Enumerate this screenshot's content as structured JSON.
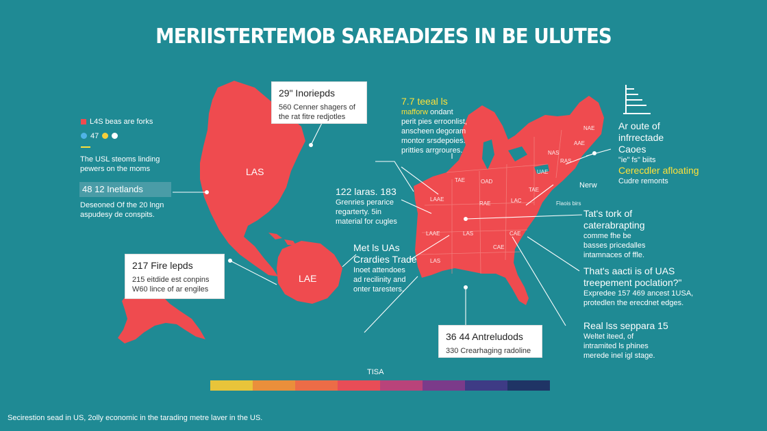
{
  "title": "MERIISTERTEMOB SAREADIZES IN BE ULUTES",
  "colors": {
    "background": "#1f8a94",
    "land": "#ef4b4f",
    "accent_yellow": "#ffe13a"
  },
  "legend": {
    "line1": "L4S beas are forks",
    "line2": "47",
    "dot_colors": [
      "#4fb3e6",
      "#f6cf3a",
      "#ffffff"
    ]
  },
  "left": {
    "intro_line1": "The USL steoms linding",
    "intro_line2": "pewers on the moms",
    "stat_heading": "48 12 Inetlands",
    "stat_body1": "Deseoned Of the 20 lngn",
    "stat_body2": "aspudesy de conspits."
  },
  "box_top": {
    "heading": "29\" Inoriepds",
    "line1": "560 Cenner shagers of",
    "line2": "the rat fitre redjotles"
  },
  "box_left": {
    "heading": "217 Fire lepds",
    "line1": "215 eitdide est conpins",
    "line2": "W60 lince of ar engiles"
  },
  "box_bottom": {
    "heading": "36 44 Antreludods",
    "line1": "330 Crearhaging radoline"
  },
  "mid_block": {
    "heading": "122 laras. 183",
    "line1": "Grenries perarice",
    "line2": "regarterty. 5in",
    "line3": "material for cugles"
  },
  "trade_block": {
    "heading1": "Met ls UAs",
    "heading2": "Crardies Trade",
    "line1": "Inoet attendoes",
    "line2": "ad recilinity and",
    "line3": "onter taresters."
  },
  "top_center_block": {
    "heading1": "7.7 teeal ls",
    "heading2": "mafforw",
    "heading2_rest": " ondant",
    "line1": "perit pies erroonlist,",
    "line2": "anscheen degoram",
    "line3": "montor srsdepoies.",
    "line4": "pritties arrgroures."
  },
  "right_top": {
    "line1": "Ar oute of",
    "line2": "infrrectade",
    "line3": "Caoes",
    "line4": "\"ie\" fs\" biits",
    "highlight": "Cerecdler afloating",
    "line5": "Cudre remonts",
    "line6": "Nerw"
  },
  "right_mid": {
    "heading1": "Tat's tork of",
    "heading2": "caterabrapting",
    "line1": "comme fhe be",
    "line2": "basses pricedalles",
    "line3": "intamnaces of ffle."
  },
  "right_q": {
    "heading1": "That's aacti is of UAS",
    "heading2": "treepement poclation?\"",
    "line1": "Expredee 157 469 ancest 1USA,",
    "line2": "protedlen the erecdnet edges."
  },
  "right_bottom": {
    "heading": "Real lss seppara 15",
    "line1": "Weltet iteed, of",
    "line2": "intramited ls phines",
    "line3": "merede inel igl stage."
  },
  "map_labels": {
    "north_america": "LAS",
    "south_america": "LAE",
    "states": [
      "TAE",
      "OAD",
      "LAAE",
      "LAAE",
      "LAS",
      "RAE",
      "LAS",
      "CAE",
      "CAE",
      "LAC",
      "NAE",
      "AAE",
      "NAS",
      "UAE",
      "TAE",
      "RAS"
    ],
    "flo_label": "Flaois birs"
  },
  "scale": {
    "label": "TISA",
    "colors": [
      "#e8c43a",
      "#ea8f3b",
      "#ec6c47",
      "#e84d57",
      "#b9437a",
      "#7b3b8a",
      "#3e3b85",
      "#1f3465"
    ]
  },
  "footer": "Secirestion sead in US,  2olly economic in the tarading metre laver in the US."
}
